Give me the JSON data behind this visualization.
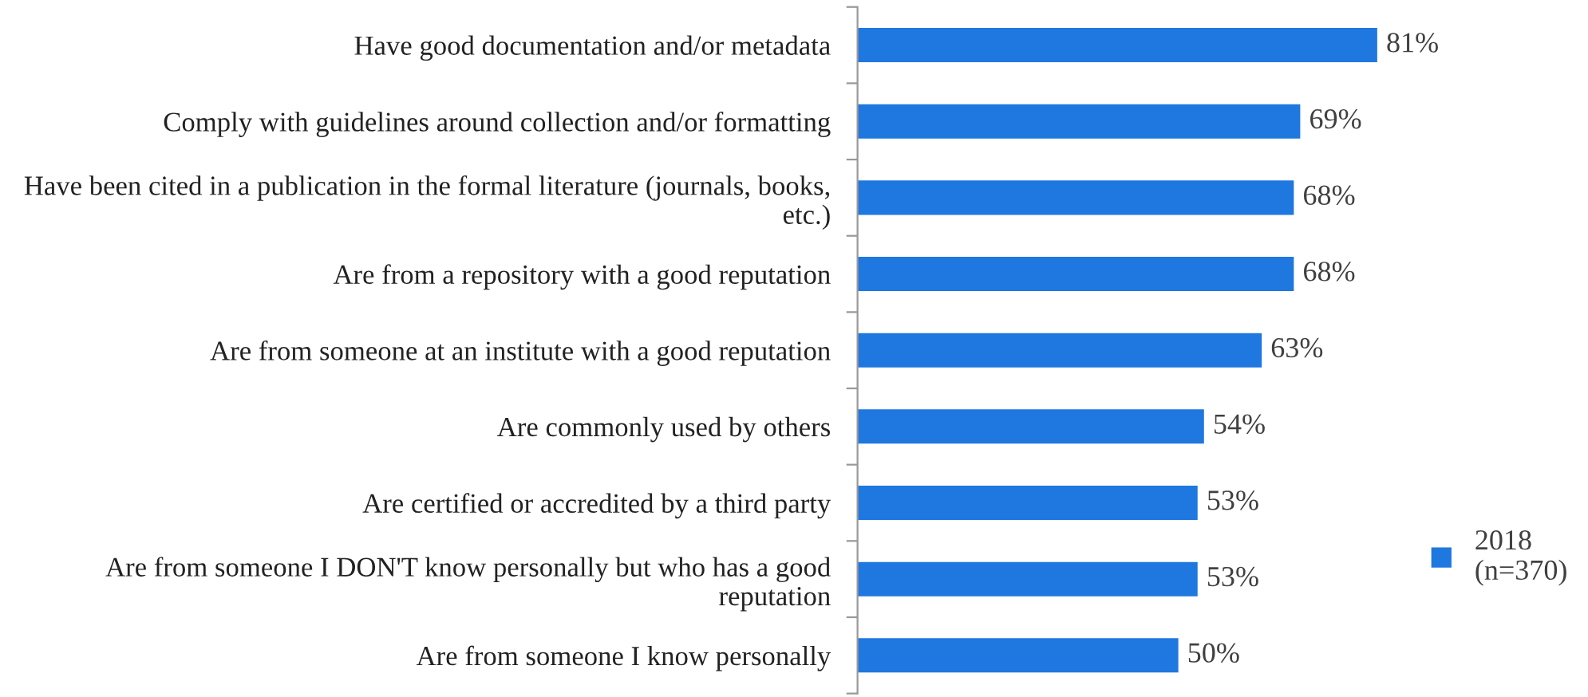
{
  "chart_data": {
    "type": "bar",
    "orientation": "horizontal",
    "categories": [
      "Have good documentation and/or metadata",
      "Comply with guidelines around collection and/or formatting",
      "Have been cited in a publication in the formal literature (journals, books, etc.)",
      "Are from a repository with a good reputation",
      "Are from someone at an institute with a good reputation",
      "Are commonly used by others",
      "Are certified or accredited by a third party",
      "Are from someone I DON'T know personally but who has a good reputation",
      "Are from someone I know personally"
    ],
    "series": [
      {
        "name": "2018\n(n=370)",
        "color": "#1f77e0",
        "values": [
          81,
          69,
          68,
          68,
          63,
          54,
          53,
          53,
          50
        ],
        "value_labels": [
          "81%",
          "69%",
          "68%",
          "68%",
          "63%",
          "54%",
          "53%",
          "53%",
          "50%"
        ]
      }
    ],
    "tick_labels": false,
    "legend": "right",
    "grid": false
  }
}
